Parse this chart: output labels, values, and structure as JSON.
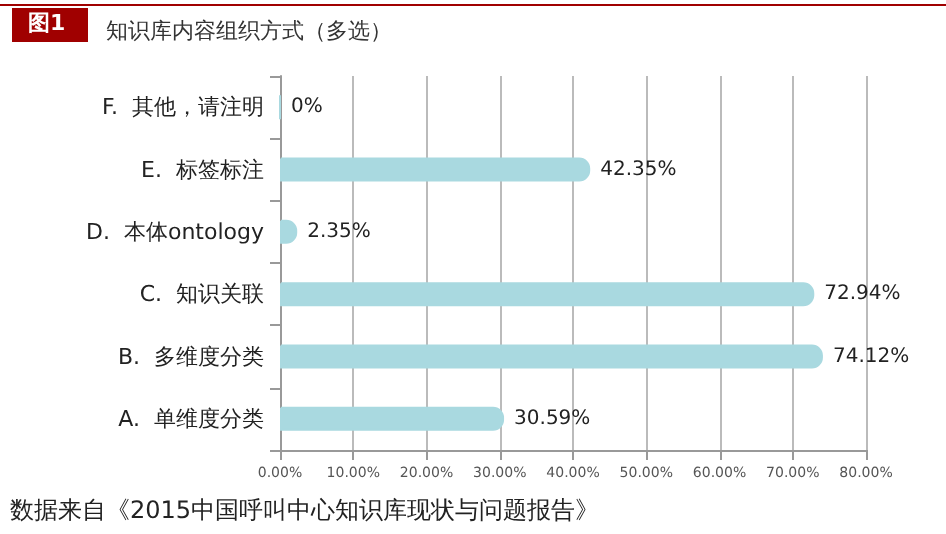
{
  "chart_data": {
    "type": "bar",
    "orientation": "horizontal",
    "title": "知识库内容组织方式（多选）",
    "categories": [
      "F.  其他，请注明",
      "E.  标签标注",
      "D.  本体ontology",
      "C.  知识关联",
      "B.  多维度分类",
      "A.  单维度分类"
    ],
    "values": [
      0,
      42.35,
      2.35,
      72.94,
      74.12,
      30.59
    ],
    "value_labels": [
      "0%",
      "42.35%",
      "2.35%",
      "72.94%",
      "74.12%",
      "30.59%"
    ],
    "color": "#a9d9e0",
    "xlim": [
      0,
      80
    ],
    "xticks": [
      {
        "value": 0,
        "label": "0.00%"
      },
      {
        "value": 10,
        "label": "10.00%"
      },
      {
        "value": 20,
        "label": "20.00%"
      },
      {
        "value": 30,
        "label": "30.00%"
      },
      {
        "value": 40,
        "label": "40.00%"
      },
      {
        "value": 50,
        "label": "50.00%"
      },
      {
        "value": 60,
        "label": "60.00%"
      },
      {
        "value": 70,
        "label": "70.00%"
      },
      {
        "value": 80,
        "label": "80.00%"
      }
    ],
    "grid": "x",
    "annotations": [
      "图1",
      "数据来自《2015中国呼叫中心知识库现状与问题报告》"
    ]
  }
}
